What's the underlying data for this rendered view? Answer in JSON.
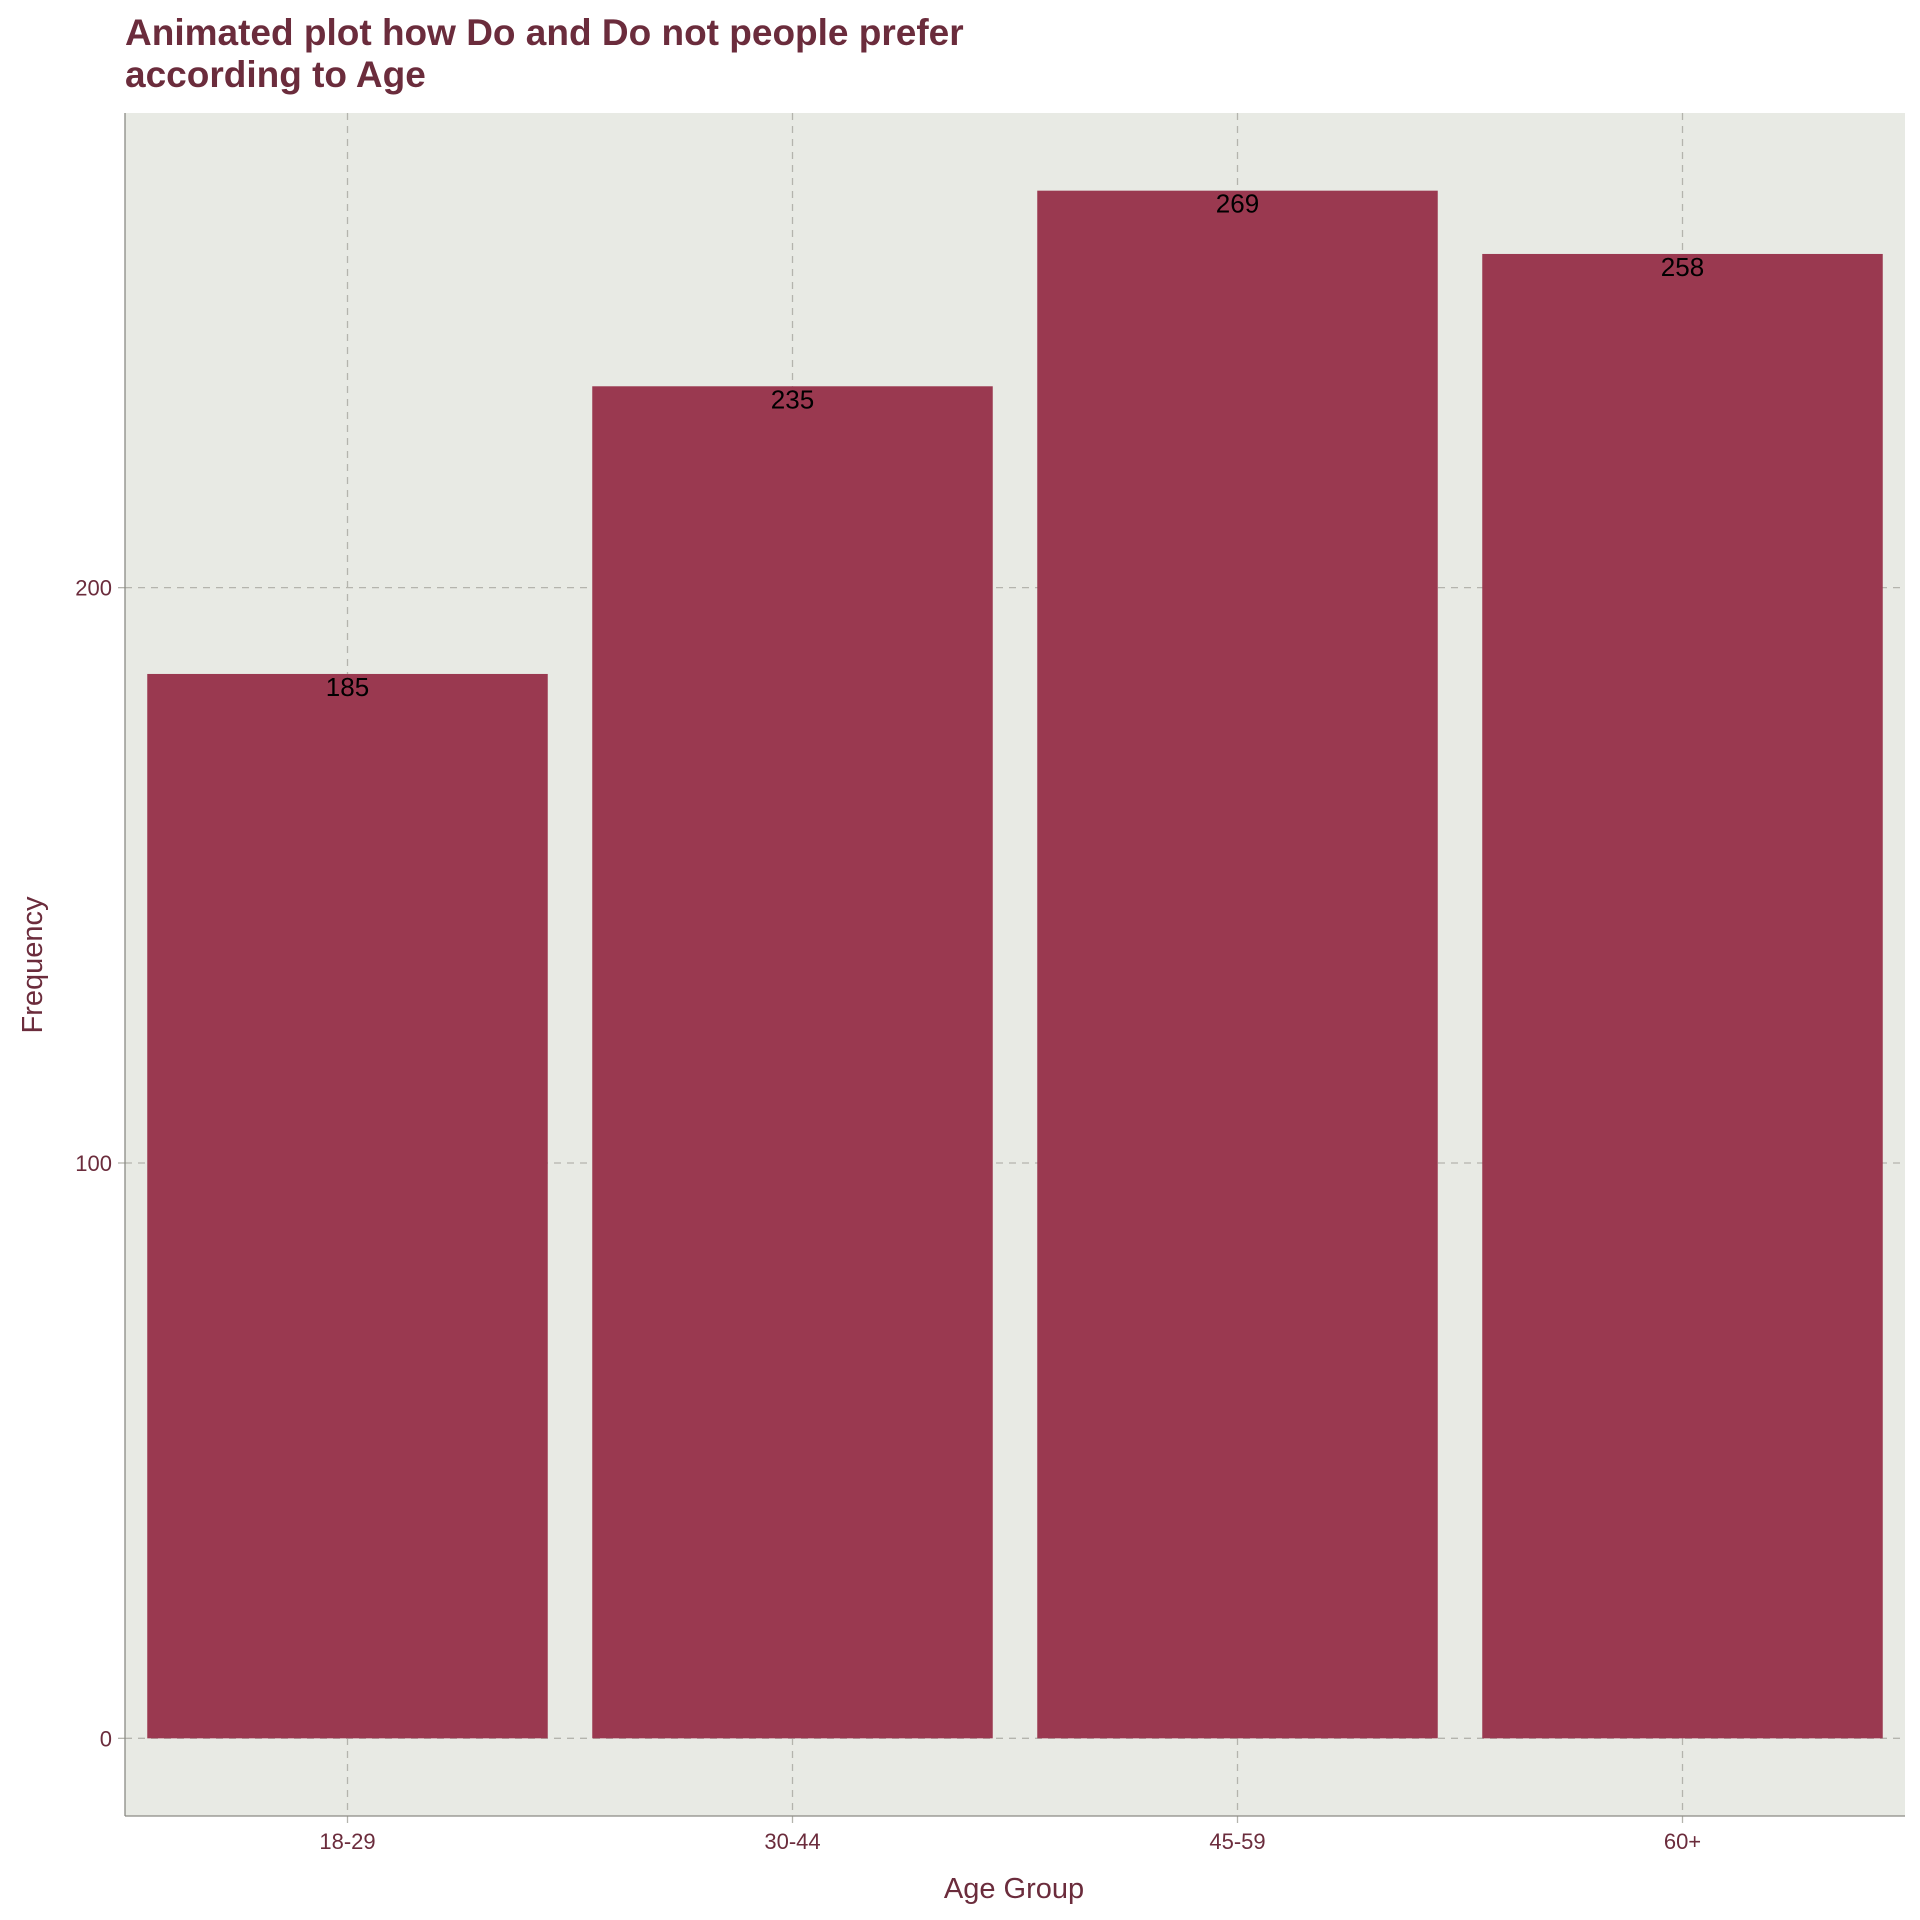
{
  "chart_data": {
    "type": "bar",
    "title_lines": [
      "Animated plot how Do and Do not people prefer",
      "according to Age"
    ],
    "xlabel": "Age Group",
    "ylabel": "Frequency",
    "categories": [
      "18-29",
      "30-44",
      "45-59",
      "60+"
    ],
    "values": [
      185,
      235,
      269,
      258
    ],
    "data_labels": [
      "185",
      "235",
      "269",
      "258"
    ],
    "ylim": [
      -13.5,
      282.5
    ],
    "y_ticks": [
      0,
      100,
      200
    ],
    "y_tick_labels": [
      "0",
      "100",
      "200"
    ],
    "grid": true,
    "legend": "none",
    "colors": {
      "bar": "#9A3950",
      "panel_background": "#E8EAE4",
      "grid": "#B4B4AD",
      "axis_text": "#6B2C3C",
      "title": "#6B2C3C",
      "data_label": "#000000"
    }
  }
}
